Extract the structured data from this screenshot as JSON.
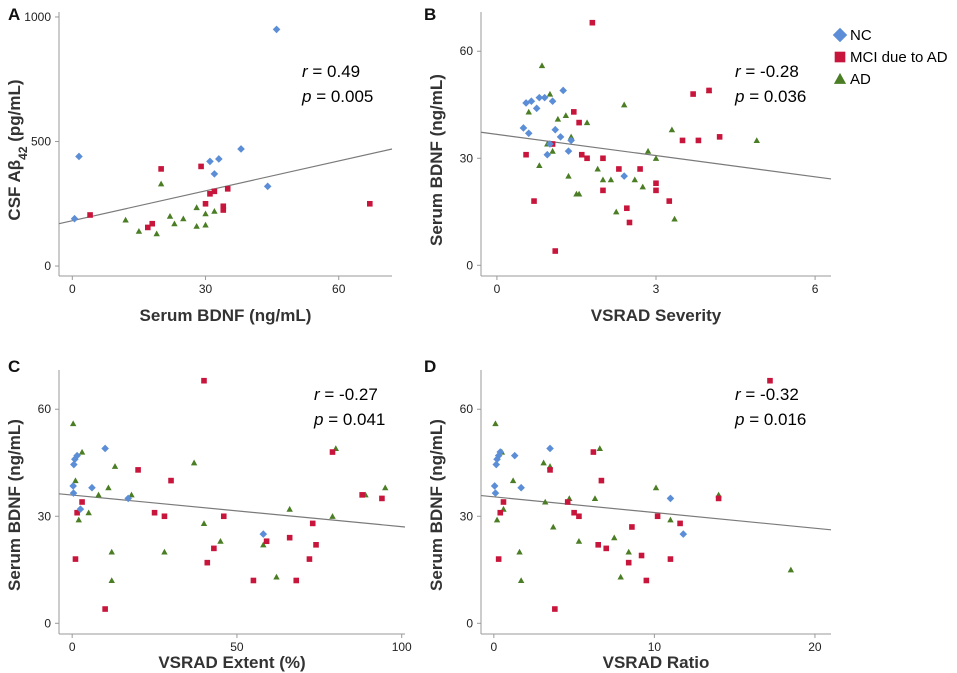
{
  "colors": {
    "NC": "#5b8ed6",
    "MCI": "#c8153c",
    "AD": "#4a7d24",
    "axis": "#999999",
    "fit": "#7a7a7a"
  },
  "legend": {
    "items": [
      {
        "label": "NC",
        "color": "#5b8ed6",
        "shape": "diamond"
      },
      {
        "label": "MCI due to AD",
        "color": "#c8153c",
        "shape": "square"
      },
      {
        "label": "AD",
        "color": "#4a7d24",
        "shape": "triangle"
      }
    ]
  },
  "chart_data": [
    {
      "panel": "A",
      "type": "scatter",
      "xlabel": "Serum BDNF (ng/mL)",
      "ylabel_main": "CSF Aβ",
      "ylabel_sub": "42",
      "ylabel_unit": " (pg/mL)",
      "xlim": [
        -3,
        72
      ],
      "ylim": [
        -40,
        1020
      ],
      "xticks": [
        0,
        30,
        60
      ],
      "yticks": [
        0,
        500,
        1000
      ],
      "stat_r": "= 0.49",
      "stat_p": "= 0.005",
      "fit": [
        [
          -3,
          170
        ],
        [
          72,
          470
        ]
      ],
      "series": {
        "NC": [
          [
            0.5,
            190
          ],
          [
            1.5,
            440
          ],
          [
            31,
            420
          ],
          [
            32,
            370
          ],
          [
            33,
            430
          ],
          [
            38,
            470
          ],
          [
            44,
            320
          ],
          [
            46,
            950
          ]
        ],
        "MCI": [
          [
            4,
            205
          ],
          [
            17,
            155
          ],
          [
            18,
            170
          ],
          [
            20,
            390
          ],
          [
            29,
            400
          ],
          [
            30,
            250
          ],
          [
            31,
            290
          ],
          [
            32,
            300
          ],
          [
            34,
            240
          ],
          [
            34,
            225
          ],
          [
            35,
            310
          ],
          [
            67,
            250
          ]
        ],
        "AD": [
          [
            12,
            185
          ],
          [
            15,
            140
          ],
          [
            19,
            130
          ],
          [
            20,
            330
          ],
          [
            22,
            200
          ],
          [
            23,
            170
          ],
          [
            25,
            190
          ],
          [
            28,
            235
          ],
          [
            28,
            160
          ],
          [
            30,
            165
          ],
          [
            30,
            210
          ],
          [
            32,
            220
          ]
        ]
      }
    },
    {
      "panel": "B",
      "type": "scatter",
      "xlabel": "VSRAD Severity",
      "ylabel": "Serum BDNF (ng/mL)",
      "xlim": [
        -0.3,
        6.3
      ],
      "ylim": [
        -3,
        71
      ],
      "xticks": [
        0,
        3,
        6
      ],
      "yticks": [
        0,
        30,
        60
      ],
      "stat_r": "= -0.28",
      "stat_p": "= 0.036",
      "fit": [
        [
          -0.3,
          37.3
        ],
        [
          6.3,
          24.2
        ]
      ],
      "series": {
        "NC": [
          [
            0.5,
            38.5
          ],
          [
            0.55,
            45.5
          ],
          [
            0.6,
            37
          ],
          [
            0.65,
            46
          ],
          [
            0.75,
            44
          ],
          [
            0.8,
            47
          ],
          [
            0.9,
            47
          ],
          [
            0.95,
            31
          ],
          [
            1.0,
            34
          ],
          [
            1.05,
            46
          ],
          [
            1.1,
            38
          ],
          [
            1.2,
            36
          ],
          [
            1.25,
            49
          ],
          [
            1.35,
            32
          ],
          [
            1.4,
            35
          ],
          [
            2.4,
            25
          ]
        ],
        "MCI": [
          [
            0.55,
            31
          ],
          [
            0.7,
            18
          ],
          [
            1.05,
            34
          ],
          [
            1.1,
            4
          ],
          [
            1.45,
            43
          ],
          [
            1.55,
            40
          ],
          [
            1.6,
            31
          ],
          [
            1.7,
            30
          ],
          [
            1.8,
            68
          ],
          [
            2.0,
            30
          ],
          [
            2.0,
            21
          ],
          [
            2.3,
            27
          ],
          [
            2.45,
            16
          ],
          [
            2.5,
            12
          ],
          [
            2.7,
            27
          ],
          [
            3.0,
            23
          ],
          [
            3.0,
            21
          ],
          [
            3.25,
            18
          ],
          [
            3.5,
            35
          ],
          [
            3.7,
            48
          ],
          [
            3.8,
            35
          ],
          [
            4.0,
            49
          ],
          [
            4.2,
            36
          ]
        ],
        "AD": [
          [
            0.6,
            43
          ],
          [
            0.8,
            28
          ],
          [
            0.85,
            56
          ],
          [
            0.95,
            34
          ],
          [
            1.0,
            48
          ],
          [
            1.05,
            32
          ],
          [
            1.15,
            41
          ],
          [
            1.3,
            42
          ],
          [
            1.35,
            25
          ],
          [
            1.4,
            36
          ],
          [
            1.5,
            20
          ],
          [
            1.55,
            20
          ],
          [
            1.7,
            40
          ],
          [
            1.9,
            27
          ],
          [
            2.0,
            24
          ],
          [
            2.15,
            24
          ],
          [
            2.25,
            15
          ],
          [
            2.4,
            45
          ],
          [
            2.6,
            24
          ],
          [
            2.75,
            22
          ],
          [
            2.85,
            32
          ],
          [
            3.0,
            30
          ],
          [
            3.3,
            38
          ],
          [
            3.35,
            13
          ],
          [
            4.0,
            49
          ],
          [
            4.9,
            35
          ]
        ]
      }
    },
    {
      "panel": "C",
      "type": "scatter",
      "xlabel": "VSRAD Extent (%)",
      "ylabel": "Serum BDNF (ng/mL)",
      "xlim": [
        -4,
        101
      ],
      "ylim": [
        -3,
        71
      ],
      "xticks": [
        0,
        50,
        100
      ],
      "yticks": [
        0,
        30,
        60
      ],
      "stat_r": "= -0.27",
      "stat_p": "= 0.041",
      "fit": [
        [
          -4,
          36.3
        ],
        [
          101,
          27
        ]
      ],
      "series": {
        "NC": [
          [
            0.3,
            38.5
          ],
          [
            0.4,
            36.5
          ],
          [
            0.5,
            44.5
          ],
          [
            0.8,
            46
          ],
          [
            1.5,
            47
          ],
          [
            2.5,
            32
          ],
          [
            6,
            38
          ],
          [
            10,
            49
          ],
          [
            17,
            35
          ],
          [
            58,
            25
          ]
        ],
        "MCI": [
          [
            1,
            18
          ],
          [
            1.5,
            31
          ],
          [
            3,
            34
          ],
          [
            10,
            4
          ],
          [
            20,
            43
          ],
          [
            25,
            31
          ],
          [
            28,
            30
          ],
          [
            30,
            40
          ],
          [
            40,
            68
          ],
          [
            41,
            17
          ],
          [
            43,
            21
          ],
          [
            46,
            30
          ],
          [
            55,
            12
          ],
          [
            59,
            23
          ],
          [
            66,
            24
          ],
          [
            68,
            12
          ],
          [
            72,
            18
          ],
          [
            73,
            28
          ],
          [
            74,
            22
          ],
          [
            79,
            48
          ],
          [
            88,
            36
          ],
          [
            94,
            35
          ]
        ],
        "AD": [
          [
            0.3,
            56
          ],
          [
            1,
            40
          ],
          [
            2,
            29
          ],
          [
            3,
            48
          ],
          [
            5,
            31
          ],
          [
            8,
            36
          ],
          [
            11,
            38
          ],
          [
            12,
            20
          ],
          [
            12,
            12
          ],
          [
            13,
            44
          ],
          [
            18,
            36
          ],
          [
            28,
            20
          ],
          [
            37,
            45
          ],
          [
            40,
            28
          ],
          [
            45,
            23
          ],
          [
            58,
            22
          ],
          [
            62,
            13
          ],
          [
            66,
            32
          ],
          [
            79,
            30
          ],
          [
            80,
            49
          ],
          [
            89,
            36
          ],
          [
            95,
            38
          ]
        ]
      }
    },
    {
      "panel": "D",
      "type": "scatter",
      "xlabel": "VSRAD Ratio",
      "ylabel": "Serum BDNF (ng/mL)",
      "xlim": [
        -0.8,
        21
      ],
      "ylim": [
        -3,
        71
      ],
      "xticks": [
        0,
        10,
        20
      ],
      "yticks": [
        0,
        30,
        60
      ],
      "stat_r": "= -0.32",
      "stat_p": "= 0.016",
      "fit": [
        [
          -0.8,
          35.8
        ],
        [
          21,
          26.2
        ]
      ],
      "series": {
        "NC": [
          [
            0.05,
            38.5
          ],
          [
            0.1,
            36.5
          ],
          [
            0.15,
            44.5
          ],
          [
            0.2,
            46
          ],
          [
            0.3,
            47
          ],
          [
            0.4,
            48
          ],
          [
            1.3,
            47
          ],
          [
            1.7,
            38
          ],
          [
            3.5,
            49
          ],
          [
            11,
            35
          ],
          [
            11.8,
            25
          ]
        ],
        "MCI": [
          [
            0.3,
            18
          ],
          [
            0.4,
            31
          ],
          [
            0.6,
            34
          ],
          [
            3.5,
            43
          ],
          [
            3.8,
            4
          ],
          [
            4.6,
            34
          ],
          [
            5,
            31
          ],
          [
            5.3,
            30
          ],
          [
            6.2,
            48
          ],
          [
            6.5,
            22
          ],
          [
            6.7,
            40
          ],
          [
            7,
            21
          ],
          [
            8.4,
            17
          ],
          [
            8.6,
            27
          ],
          [
            9.2,
            19
          ],
          [
            9.5,
            12
          ],
          [
            10.2,
            30
          ],
          [
            11,
            18
          ],
          [
            11.6,
            28
          ],
          [
            14,
            35
          ],
          [
            17.2,
            68
          ]
        ],
        "AD": [
          [
            0.1,
            56
          ],
          [
            0.2,
            29
          ],
          [
            0.5,
            48
          ],
          [
            0.6,
            32
          ],
          [
            1.2,
            40
          ],
          [
            1.6,
            20
          ],
          [
            1.7,
            12
          ],
          [
            3.1,
            45
          ],
          [
            3.2,
            34
          ],
          [
            3.5,
            44
          ],
          [
            3.7,
            27
          ],
          [
            4.7,
            35
          ],
          [
            5.3,
            23
          ],
          [
            6.3,
            35
          ],
          [
            6.6,
            49
          ],
          [
            7.5,
            24
          ],
          [
            7.9,
            13
          ],
          [
            8.4,
            20
          ],
          [
            10.1,
            38
          ],
          [
            11,
            29
          ],
          [
            14,
            36
          ],
          [
            18.5,
            15
          ]
        ]
      }
    }
  ]
}
